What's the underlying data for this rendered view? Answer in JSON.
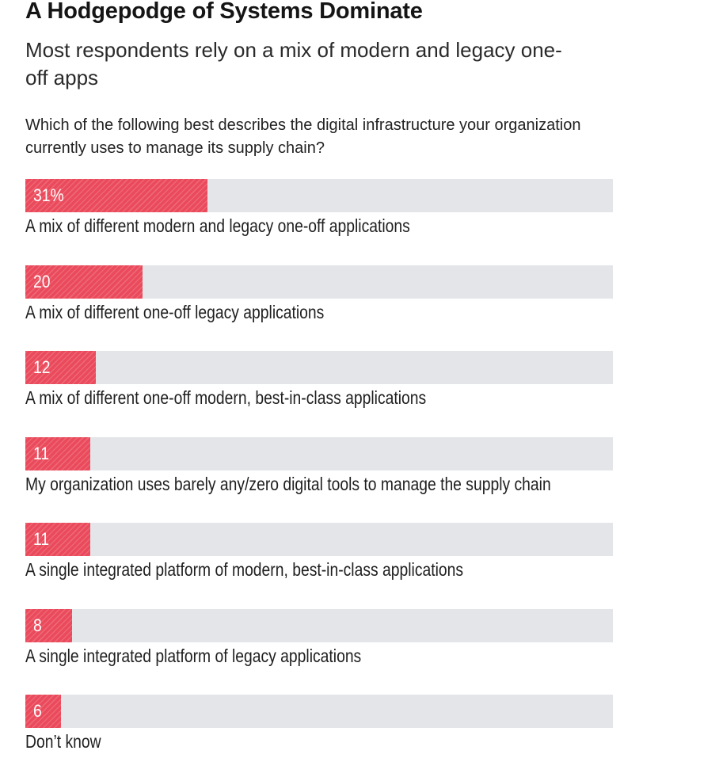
{
  "header": {
    "title": "A Hodgepodge of Systems Dominate",
    "subtitle": "Most respondents rely on a mix of modern and legacy one-off apps",
    "question": "Which of the following best describes the digital infrastructure your organization currently uses to manage its supply chain?"
  },
  "colors": {
    "bar": "#ea4a5b",
    "track": "#e4e5e9"
  },
  "chart_data": {
    "type": "bar",
    "orientation": "horizontal",
    "title": "A Hodgepodge of Systems Dominate",
    "subtitle": "Most respondents rely on a mix of modern and legacy one-off apps",
    "xlim": [
      0,
      100
    ],
    "grid": false,
    "categories": [
      "A mix of different modern and legacy one-off applications",
      "A mix of different one-off legacy applications",
      "A mix of different one-off modern, best-in-class applications",
      "My organization uses barely any/zero digital tools to manage the supply chain",
      "A single integrated platform of modern, best-in-class applications",
      "A single integrated platform of legacy applications",
      "Don’t know"
    ],
    "values": [
      31,
      20,
      12,
      11,
      11,
      8,
      6
    ],
    "value_labels": [
      "31%",
      "20",
      "12",
      "11",
      "11",
      "8",
      "6"
    ]
  }
}
